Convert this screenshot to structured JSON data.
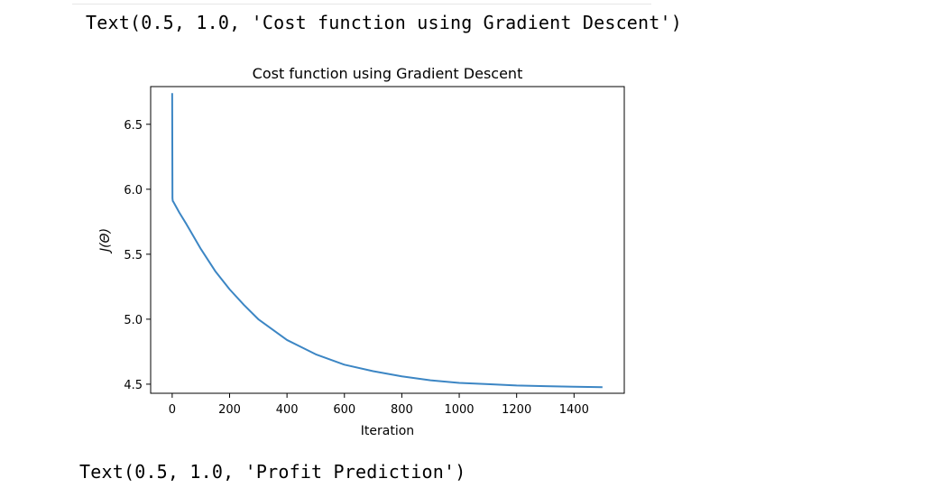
{
  "outputs": {
    "first": "Text(0.5, 1.0, 'Cost function using Gradient Descent')",
    "second": "Text(0.5, 1.0, 'Profit Prediction')"
  },
  "colors": {
    "line": "#3c86c4",
    "axis": "#000000",
    "text": "#000000"
  },
  "chart_data": {
    "type": "line",
    "title": "Cost function using Gradient Descent",
    "xlabel": "Iteration",
    "ylabel": "J(Θ)",
    "xlim": [
      -75,
      1575
    ],
    "ylim": [
      4.43,
      6.79
    ],
    "xticks": [
      0,
      200,
      400,
      600,
      800,
      1000,
      1200,
      1400
    ],
    "yticks": [
      4.5,
      5.0,
      5.5,
      6.0,
      6.5
    ],
    "ytick_labels": [
      "4.5",
      "5.0",
      "5.5",
      "6.0",
      "6.5"
    ],
    "grid": false,
    "series": [
      {
        "x": [
          0,
          1,
          2,
          5,
          10,
          25,
          50,
          100,
          150,
          200,
          250,
          300,
          400,
          500,
          600,
          700,
          800,
          900,
          1000,
          1100,
          1200,
          1300,
          1400,
          1499
        ],
        "y": [
          6.74,
          5.93,
          5.91,
          5.9,
          5.88,
          5.82,
          5.73,
          5.54,
          5.37,
          5.23,
          5.11,
          5.0,
          4.84,
          4.73,
          4.65,
          4.6,
          4.56,
          4.53,
          4.51,
          4.5,
          4.49,
          4.485,
          4.48,
          4.477
        ]
      }
    ]
  }
}
